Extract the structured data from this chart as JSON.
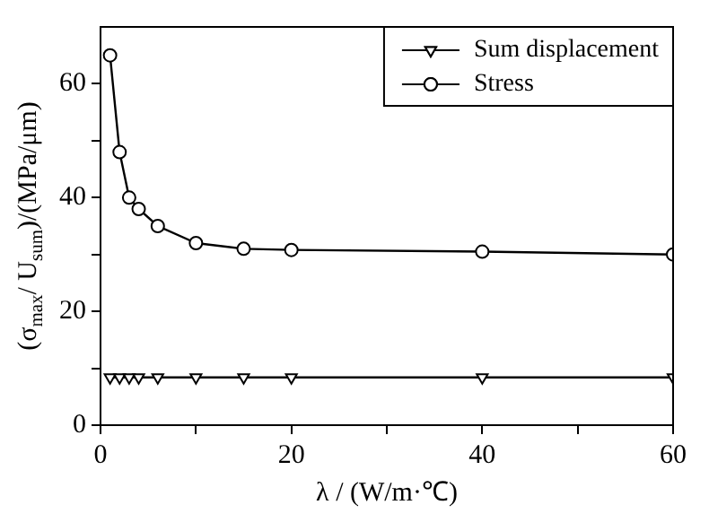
{
  "chart_data": {
    "type": "line",
    "xlabel": "λ / (W/m·℃)",
    "ylabel": "(σ$_{max}$/ U$_{sum}$)/(MPa/μm)",
    "x": [
      1,
      2,
      3,
      4,
      6,
      10,
      15,
      20,
      40,
      60
    ],
    "series": [
      {
        "name": "Sum displacement",
        "color": "#000000",
        "marker": "triangle",
        "values": [
          8.4,
          8.4,
          8.4,
          8.4,
          8.4,
          8.4,
          8.4,
          8.4,
          8.4,
          8.4
        ]
      },
      {
        "name": "Stress",
        "color": "#000000",
        "marker": "circle",
        "values": [
          65,
          48,
          40,
          38,
          35,
          32,
          31,
          30.8,
          30.5,
          30
        ]
      }
    ],
    "xlim": [
      0,
      60
    ],
    "xticks": [
      0,
      {
        "value": 10,
        "label": null
      },
      20,
      {
        "value": 30,
        "label": null
      },
      40,
      {
        "value": 50,
        "label": null
      },
      60
    ],
    "ylim": [
      0,
      70
    ],
    "yticks": [
      0,
      {
        "value": 10,
        "label": null
      },
      20,
      {
        "value": 30,
        "label": null
      },
      40,
      {
        "value": 50,
        "label": null
      },
      60
    ],
    "grid": false,
    "legend": "top right",
    "line_style": "solid"
  }
}
